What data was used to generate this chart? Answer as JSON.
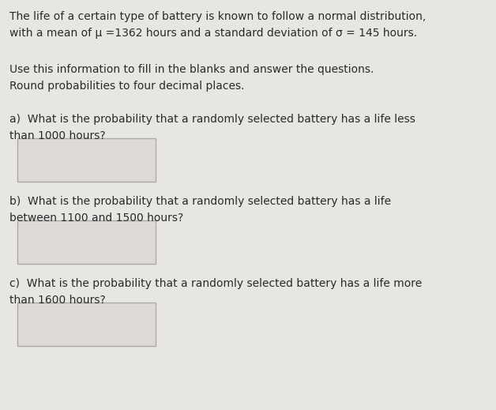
{
  "background_color": "#e8e6e3",
  "text_color": "#2a2a2a",
  "title_line1": "The life of a certain type of battery is known to follow a normal distribution,",
  "title_line2": "with a mean of μ =1362 hours and a standard deviation of σ = 145 hours.",
  "instruction_line1": "Use this information to fill in the blanks and answer the questions.",
  "instruction_line2": "Round probabilities to four decimal places.",
  "qa_line1a": "a)  What is the probability that a randomly selected battery has a life less",
  "qa_line1b": "than 1000 hours?",
  "qa_line2a": "b)  What is the probability that a randomly selected battery has a life",
  "qa_line2b": "between 1100 and 1500 hours?",
  "qa_line3a": "c)  What is the probability that a randomly selected battery has a life more",
  "qa_line3b": "than 1600 hours?",
  "box_color": "#dedad6",
  "box_border": "#aaaaaa",
  "font_size_main": 10.0
}
